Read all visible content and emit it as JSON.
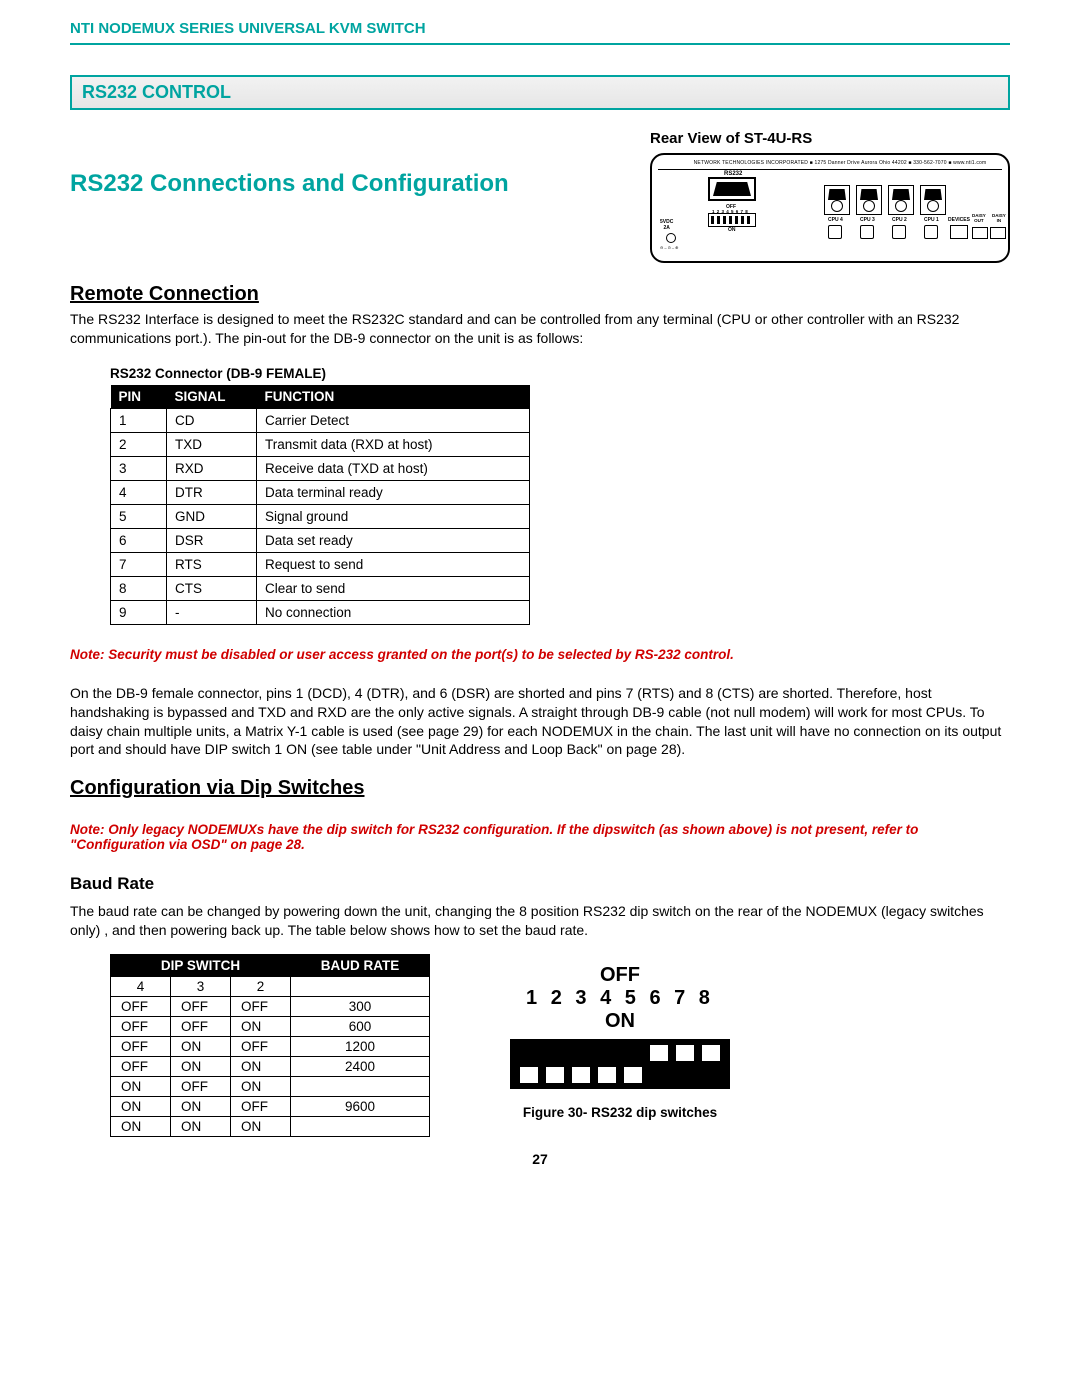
{
  "doc_header": "NTI NODEMUX SERIES UNIVERSAL KVM SWITCH",
  "section_banner": "RS232 CONTROL",
  "main_title": "RS232 Connections and Configuration",
  "rear_view_label": "Rear View of ST-4U-RS",
  "rear_view": {
    "top_text": "NETWORK TECHNOLOGIES INCORPORATED ■ 1275 Danner Drive  Aurora Ohio 44202 ■ 330-562-7070 ■ www.nti1.com",
    "rs232_label": "RS232",
    "off": "OFF",
    "on": "ON",
    "nums": "1 2 3 4 5 6 7 8",
    "pwr": "5VDC\n2A",
    "cpu": [
      "CPU 4",
      "CPU 3",
      "CPU 2",
      "CPU 1"
    ],
    "devices": "DEVICES",
    "daisy_out": "DAISY\nOUT",
    "daisy_in": "DAISY\nIN"
  },
  "remote_heading": "Remote Connection",
  "remote_body": "The RS232 Interface is designed to meet the RS232C standard and can be controlled from any terminal (CPU or other controller with an RS232 communications port.).  The pin-out for the DB-9 connector on the unit is as follows:",
  "pin_table": {
    "caption": "RS232 Connector (DB-9 FEMALE)",
    "headers": [
      "PIN",
      "SIGNAL",
      "FUNCTION"
    ],
    "rows": [
      [
        "1",
        "CD",
        "Carrier Detect"
      ],
      [
        "2",
        "TXD",
        "Transmit data (RXD at host)"
      ],
      [
        "3",
        "RXD",
        "Receive data (TXD at host)"
      ],
      [
        "4",
        "DTR",
        "Data terminal ready"
      ],
      [
        "5",
        "GND",
        "Signal ground"
      ],
      [
        "6",
        "DSR",
        "Data set ready"
      ],
      [
        "7",
        "RTS",
        "Request to send"
      ],
      [
        "8",
        "CTS",
        "Clear to send"
      ],
      [
        "9",
        "-",
        "No connection"
      ]
    ]
  },
  "note1": "Note: Security must be disabled or user access granted on the port(s) to be selected by RS-232 control.",
  "db9_body": "On the DB-9 female connector, pins 1 (DCD), 4 (DTR), and 6 (DSR) are shorted and pins 7 (RTS) and 8 (CTS) are shorted. Therefore, host handshaking is bypassed and TXD and RXD are the only active signals. A straight through DB-9 cable (not null modem) will work for most CPUs. To daisy chain multiple units, a Matrix Y-1 cable is used (see page 29) for each NODEMUX in the chain.  The last unit will have no connection on its output port and should have DIP switch 1 ON (see table under \"Unit Address and Loop Back\" on page 28).",
  "dip_heading": "Configuration via Dip Switches",
  "note2": "Note:  Only legacy NODEMUXs have the dip switch for RS232 configuration.  If the dipswitch (as shown above) is not present, refer to \"Configuration via OSD\" on page 28.",
  "baud_heading": "Baud Rate",
  "baud_body": "The baud rate can be changed by powering down the unit, changing the 8 position RS232 dip switch on the rear of the NODEMUX (legacy switches only) , and then powering back up. The table below shows how to set the baud rate.",
  "baud_table": {
    "group_headers": [
      "DIP SWITCH",
      "BAUD RATE"
    ],
    "sub_headers": [
      "4",
      "3",
      "2",
      ""
    ],
    "rows": [
      [
        "OFF",
        "OFF",
        "OFF",
        "300"
      ],
      [
        "OFF",
        "OFF",
        "ON",
        "600"
      ],
      [
        "OFF",
        "ON",
        "OFF",
        "1200"
      ],
      [
        "OFF",
        "ON",
        "ON",
        "2400"
      ],
      [
        "ON",
        "OFF",
        "ON",
        ""
      ],
      [
        "ON",
        "ON",
        "OFF",
        "9600"
      ],
      [
        "ON",
        "ON",
        "ON",
        ""
      ]
    ]
  },
  "dip_fig": {
    "off": "OFF",
    "nums": "1 2 3 4 5 6 7 8",
    "on": "ON",
    "positions": [
      1,
      1,
      1,
      1,
      1,
      0,
      0,
      0
    ],
    "caption": "Figure 30- RS232 dip switches"
  },
  "page_number": "27",
  "colors": {
    "teal": "#00a4a0",
    "red": "#d00000",
    "black": "#000000",
    "banner_bg_top": "#f2f2f2",
    "banner_bg_bot": "#e6e6e6"
  }
}
